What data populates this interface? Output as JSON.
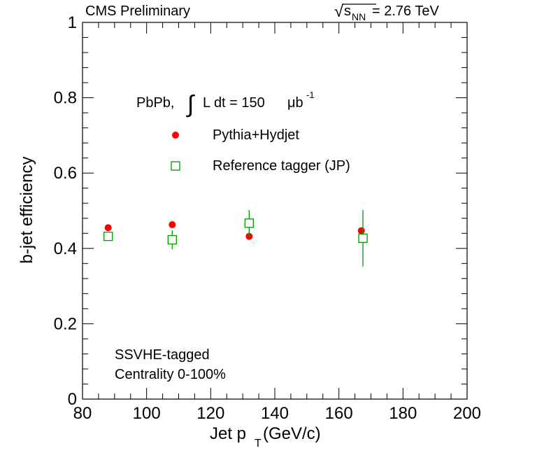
{
  "chart_data": {
    "type": "scatter",
    "header_left": "CMS Preliminary",
    "header_right": {
      "sqrt": "√",
      "s": "s",
      "sub": "NN",
      "rest": " = 2.76 TeV"
    },
    "xlabel": {
      "main": "Jet p",
      "sub": "T",
      "rest": " (GeV/c)"
    },
    "ylabel": "b-jet efficiency",
    "xlim": [
      80,
      200
    ],
    "ylim": [
      0,
      1
    ],
    "xticks": [
      80,
      100,
      120,
      140,
      160,
      180,
      200
    ],
    "xtick_labels": [
      "80",
      "100",
      "120",
      "140",
      "160",
      "180",
      "200"
    ],
    "yticks": [
      0,
      0.2,
      0.4,
      0.6,
      0.8,
      1
    ],
    "ytick_labels": [
      "0",
      "0.2",
      "0.4",
      "0.6",
      "0.8",
      "1"
    ],
    "lumi": {
      "system": "PbPb,",
      "integral": "∫",
      "text": "L dt = 150",
      "unit": "μb",
      "exp": "-1"
    },
    "legend_placement": "top-center",
    "series": [
      {
        "name": "Pythia+Hydjet",
        "marker": "filled-circle",
        "color": "#ff0000",
        "x": [
          88,
          108,
          132,
          167
        ],
        "y": [
          0.455,
          0.463,
          0.432,
          0.447
        ],
        "yerr": [
          0,
          0,
          0,
          0
        ]
      },
      {
        "name": "Reference tagger (JP)",
        "marker": "open-square",
        "color": "#009900",
        "x": [
          88,
          108,
          132,
          167.5
        ],
        "y": [
          0.432,
          0.423,
          0.467,
          0.427
        ],
        "yerr": [
          0.01,
          0.025,
          0.035,
          0.075
        ]
      }
    ],
    "annotations": [
      "SSVHE-tagged",
      "Centrality 0-100%"
    ]
  }
}
